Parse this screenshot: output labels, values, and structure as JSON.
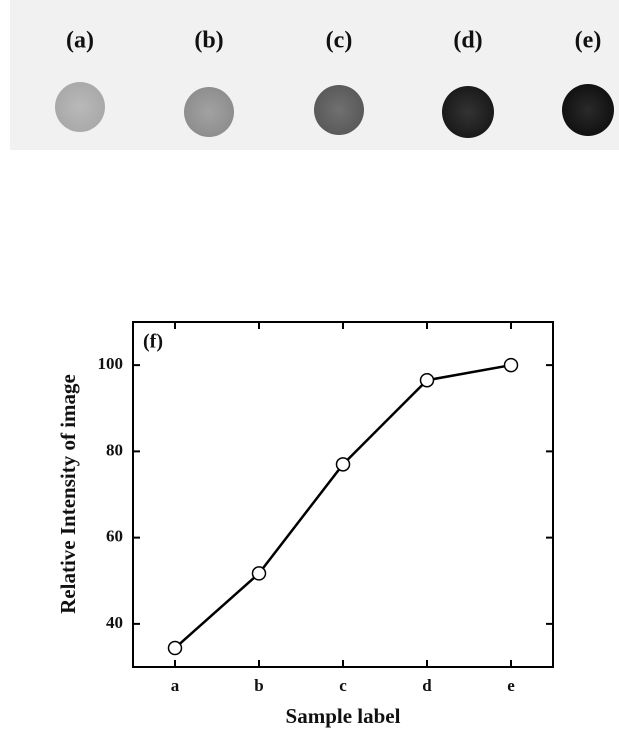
{
  "image_labels": [
    "(a)",
    "(b)",
    "(c)",
    "(d)",
    "(e)"
  ],
  "chart_data": {
    "type": "line",
    "annotation": "(f)",
    "x_label": "Sample label",
    "y_label": "Relative Intensity of image",
    "categories": [
      "a",
      "b",
      "c",
      "d",
      "e"
    ],
    "values": [
      34.4,
      51.7,
      77,
      96.5,
      100
    ],
    "color": "#000000",
    "ylim": [
      30,
      110
    ],
    "yticks": [
      40,
      60,
      80,
      100
    ]
  }
}
